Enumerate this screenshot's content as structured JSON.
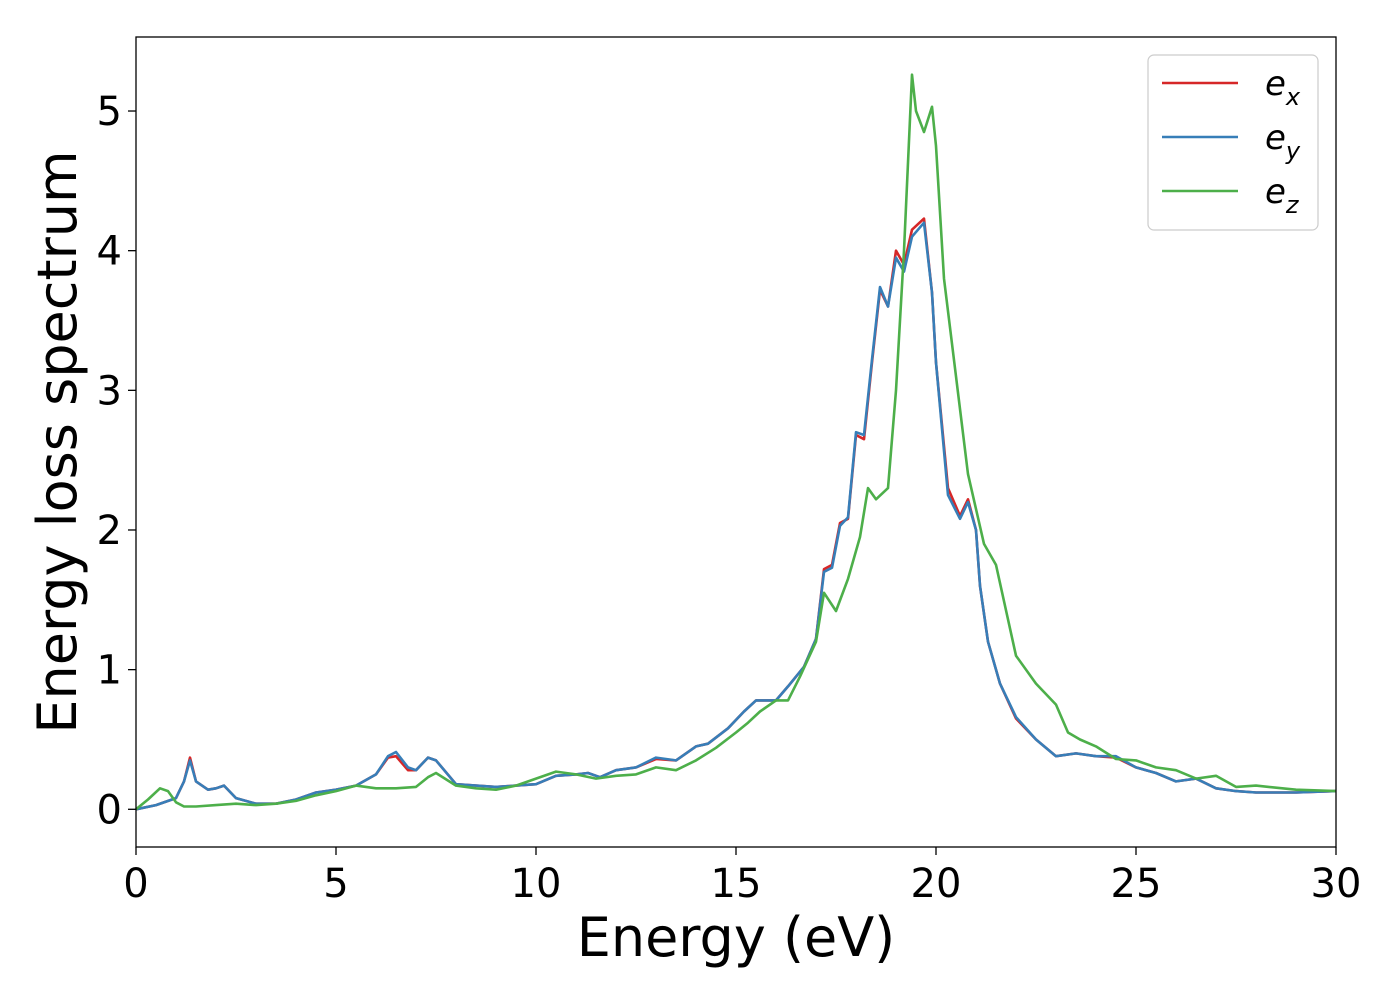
{
  "chart_data": {
    "type": "line",
    "xlabel": "Energy (eV)",
    "ylabel": "Energy loss spectrum",
    "xlim": [
      0,
      30
    ],
    "ylim": [
      -0.27,
      5.53
    ],
    "xticks": [
      0,
      5,
      10,
      15,
      20,
      25,
      30
    ],
    "xtick_labels": [
      "0",
      "5",
      "10",
      "15",
      "20",
      "25",
      "30"
    ],
    "yticks": [
      0,
      1,
      2,
      3,
      4,
      5
    ],
    "ytick_labels": [
      "0",
      "1",
      "2",
      "3",
      "4",
      "5"
    ],
    "grid": false,
    "legend_position": "top-right",
    "series": [
      {
        "name": "e",
        "subscript": "x",
        "color": "#d62728",
        "x": [
          0,
          0.5,
          1.0,
          1.2,
          1.35,
          1.5,
          1.8,
          2.0,
          2.2,
          2.5,
          3,
          3.5,
          4,
          4.5,
          5,
          5.5,
          6,
          6.3,
          6.5,
          6.8,
          7,
          7.3,
          7.5,
          8,
          8.5,
          9,
          9.5,
          10,
          10.5,
          11,
          11.3,
          11.6,
          12,
          12.5,
          13,
          13.5,
          14,
          14.3,
          14.8,
          15.2,
          15.5,
          16,
          16.3,
          16.7,
          17,
          17.2,
          17.4,
          17.6,
          17.8,
          18,
          18.2,
          18.4,
          18.6,
          18.8,
          19,
          19.2,
          19.4,
          19.7,
          19.9,
          20,
          20.3,
          20.6,
          20.8,
          21,
          21.1,
          21.3,
          21.6,
          22,
          22.5,
          23,
          23.5,
          24,
          24.5,
          25,
          25.5,
          26,
          26.5,
          27,
          27.5,
          28,
          29,
          30
        ],
        "y": [
          0,
          0.03,
          0.08,
          0.2,
          0.37,
          0.2,
          0.14,
          0.15,
          0.17,
          0.08,
          0.04,
          0.04,
          0.07,
          0.12,
          0.14,
          0.17,
          0.25,
          0.37,
          0.38,
          0.28,
          0.28,
          0.37,
          0.35,
          0.18,
          0.17,
          0.16,
          0.17,
          0.18,
          0.24,
          0.25,
          0.26,
          0.23,
          0.28,
          0.3,
          0.36,
          0.35,
          0.45,
          0.47,
          0.58,
          0.7,
          0.78,
          0.78,
          0.88,
          1.02,
          1.22,
          1.72,
          1.75,
          2.05,
          2.08,
          2.68,
          2.65,
          3.2,
          3.72,
          3.6,
          4.0,
          3.9,
          4.15,
          4.23,
          3.7,
          3.2,
          2.3,
          2.1,
          2.22,
          2.0,
          1.6,
          1.2,
          0.9,
          0.65,
          0.5,
          0.38,
          0.4,
          0.38,
          0.37,
          0.3,
          0.26,
          0.2,
          0.22,
          0.15,
          0.13,
          0.12,
          0.12,
          0.13
        ]
      },
      {
        "name": "e",
        "subscript": "y",
        "color": "#377eb8",
        "x": [
          0,
          0.5,
          1.0,
          1.2,
          1.35,
          1.5,
          1.8,
          2.0,
          2.2,
          2.5,
          3,
          3.5,
          4,
          4.5,
          5,
          5.5,
          6,
          6.3,
          6.5,
          6.8,
          7,
          7.3,
          7.5,
          8,
          8.5,
          9,
          9.5,
          10,
          10.5,
          11,
          11.3,
          11.6,
          12,
          12.5,
          13,
          13.5,
          14,
          14.3,
          14.8,
          15.2,
          15.5,
          16,
          16.3,
          16.7,
          17,
          17.2,
          17.4,
          17.6,
          17.8,
          18,
          18.2,
          18.4,
          18.6,
          18.8,
          19,
          19.2,
          19.4,
          19.7,
          19.9,
          20,
          20.3,
          20.6,
          20.8,
          21,
          21.1,
          21.3,
          21.6,
          22,
          22.5,
          23,
          23.5,
          24,
          24.5,
          25,
          25.5,
          26,
          26.5,
          27,
          27.5,
          28,
          29,
          30
        ],
        "y": [
          0,
          0.03,
          0.08,
          0.2,
          0.35,
          0.2,
          0.14,
          0.15,
          0.17,
          0.08,
          0.04,
          0.04,
          0.07,
          0.12,
          0.14,
          0.17,
          0.25,
          0.38,
          0.41,
          0.3,
          0.28,
          0.37,
          0.35,
          0.18,
          0.17,
          0.16,
          0.17,
          0.18,
          0.24,
          0.25,
          0.26,
          0.23,
          0.28,
          0.3,
          0.37,
          0.35,
          0.45,
          0.47,
          0.58,
          0.7,
          0.78,
          0.78,
          0.88,
          1.02,
          1.22,
          1.7,
          1.73,
          2.03,
          2.09,
          2.7,
          2.68,
          3.22,
          3.74,
          3.6,
          3.95,
          3.85,
          4.1,
          4.2,
          3.7,
          3.2,
          2.25,
          2.08,
          2.2,
          2.0,
          1.6,
          1.2,
          0.9,
          0.66,
          0.5,
          0.38,
          0.4,
          0.38,
          0.38,
          0.3,
          0.26,
          0.2,
          0.22,
          0.15,
          0.13,
          0.12,
          0.12,
          0.13
        ]
      },
      {
        "name": "e",
        "subscript": "z",
        "color": "#4daf4a",
        "x": [
          0,
          0.3,
          0.6,
          0.8,
          1.0,
          1.2,
          1.5,
          2,
          2.5,
          3,
          3.5,
          4,
          4.5,
          5,
          5.5,
          6,
          6.5,
          7,
          7.3,
          7.5,
          8,
          8.5,
          9,
          9.5,
          10,
          10.5,
          11,
          11.5,
          12,
          12.5,
          13,
          13.5,
          14,
          14.5,
          15,
          15.3,
          15.6,
          16,
          16.3,
          16.6,
          17,
          17.2,
          17.5,
          17.8,
          18.1,
          18.3,
          18.5,
          18.8,
          19,
          19.2,
          19.4,
          19.5,
          19.7,
          19.9,
          20,
          20.2,
          20.5,
          20.8,
          21,
          21.2,
          21.5,
          22,
          22.5,
          23,
          23.3,
          23.6,
          24,
          24.5,
          25,
          25.5,
          26,
          26.5,
          27,
          27.5,
          28,
          29,
          30
        ],
        "y": [
          0,
          0.07,
          0.15,
          0.13,
          0.05,
          0.02,
          0.02,
          0.03,
          0.04,
          0.03,
          0.04,
          0.06,
          0.1,
          0.13,
          0.17,
          0.15,
          0.15,
          0.16,
          0.23,
          0.26,
          0.17,
          0.15,
          0.14,
          0.17,
          0.22,
          0.27,
          0.25,
          0.22,
          0.24,
          0.25,
          0.3,
          0.28,
          0.35,
          0.44,
          0.55,
          0.62,
          0.7,
          0.78,
          0.78,
          0.95,
          1.2,
          1.55,
          1.42,
          1.65,
          1.95,
          2.3,
          2.22,
          2.3,
          3.0,
          4.0,
          5.26,
          5.0,
          4.85,
          5.03,
          4.75,
          3.8,
          3.1,
          2.4,
          2.15,
          1.9,
          1.75,
          1.1,
          0.9,
          0.75,
          0.55,
          0.5,
          0.45,
          0.36,
          0.35,
          0.3,
          0.28,
          0.22,
          0.24,
          0.16,
          0.17,
          0.14,
          0.13
        ]
      }
    ]
  }
}
